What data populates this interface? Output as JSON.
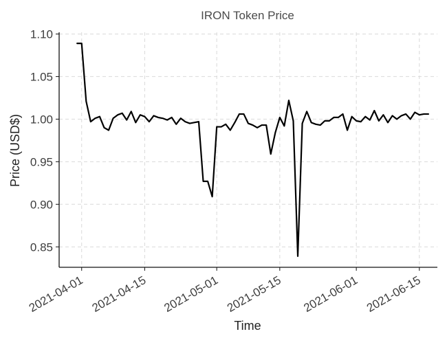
{
  "chart_data": {
    "type": "line",
    "title": "IRON Token Price",
    "xlabel": "Time",
    "ylabel": "Price (USD$)",
    "xlim": [
      "2021-03-27",
      "2021-06-19"
    ],
    "ylim": [
      0.826,
      1.102
    ],
    "grid": true,
    "x_ticks": [
      "2021-04-01",
      "2021-04-15",
      "2021-05-01",
      "2021-05-15",
      "2021-06-01",
      "2021-06-15"
    ],
    "y_ticks": [
      "0.85",
      "0.90",
      "0.95",
      "1.00",
      "1.05",
      "1.10"
    ],
    "series": [
      {
        "color": "#000000",
        "x": [
          "2021-03-31",
          "2021-04-01",
          "2021-04-02",
          "2021-04-03",
          "2021-04-04",
          "2021-04-05",
          "2021-04-06",
          "2021-04-07",
          "2021-04-08",
          "2021-04-09",
          "2021-04-10",
          "2021-04-11",
          "2021-04-12",
          "2021-04-13",
          "2021-04-14",
          "2021-04-15",
          "2021-04-16",
          "2021-04-17",
          "2021-04-18",
          "2021-04-19",
          "2021-04-20",
          "2021-04-21",
          "2021-04-22",
          "2021-04-23",
          "2021-04-24",
          "2021-04-25",
          "2021-04-26",
          "2021-04-27",
          "2021-04-28",
          "2021-04-29",
          "2021-04-30",
          "2021-05-01",
          "2021-05-02",
          "2021-05-03",
          "2021-05-04",
          "2021-05-05",
          "2021-05-06",
          "2021-05-07",
          "2021-05-08",
          "2021-05-09",
          "2021-05-10",
          "2021-05-11",
          "2021-05-12",
          "2021-05-13",
          "2021-05-14",
          "2021-05-15",
          "2021-05-16",
          "2021-05-17",
          "2021-05-18",
          "2021-05-19",
          "2021-05-20",
          "2021-05-21",
          "2021-05-22",
          "2021-05-23",
          "2021-05-24",
          "2021-05-25",
          "2021-05-26",
          "2021-05-27",
          "2021-05-28",
          "2021-05-29",
          "2021-05-30",
          "2021-05-31",
          "2021-06-01",
          "2021-06-02",
          "2021-06-03",
          "2021-06-04",
          "2021-06-05",
          "2021-06-06",
          "2021-06-07",
          "2021-06-08",
          "2021-06-09",
          "2021-06-10",
          "2021-06-11",
          "2021-06-12",
          "2021-06-13",
          "2021-06-14",
          "2021-06-15",
          "2021-06-16",
          "2021-06-17"
        ],
        "y": [
          1.089,
          1.089,
          1.021,
          0.997,
          1.001,
          1.003,
          0.99,
          0.987,
          1.001,
          1.005,
          1.007,
          0.999,
          1.009,
          0.996,
          1.005,
          1.003,
          0.997,
          1.004,
          1.002,
          1.001,
          0.999,
          1.002,
          0.994,
          1.001,
          0.997,
          0.995,
          0.996,
          0.997,
          0.927,
          0.927,
          0.909,
          0.991,
          0.991,
          0.994,
          0.987,
          0.996,
          1.006,
          1.006,
          0.995,
          0.993,
          0.99,
          0.993,
          0.993,
          0.959,
          0.984,
          1.002,
          0.992,
          1.022,
          0.998,
          0.839,
          0.995,
          1.009,
          0.996,
          0.994,
          0.993,
          0.998,
          0.998,
          1.002,
          1.002,
          1.006,
          0.987,
          1.003,
          0.998,
          0.997,
          1.003,
          0.999,
          1.01,
          0.998,
          1.005,
          0.996,
          1.004,
          1.0,
          1.004,
          1.006,
          1.0,
          1.008,
          1.005,
          1.006,
          1.006
        ]
      }
    ]
  }
}
